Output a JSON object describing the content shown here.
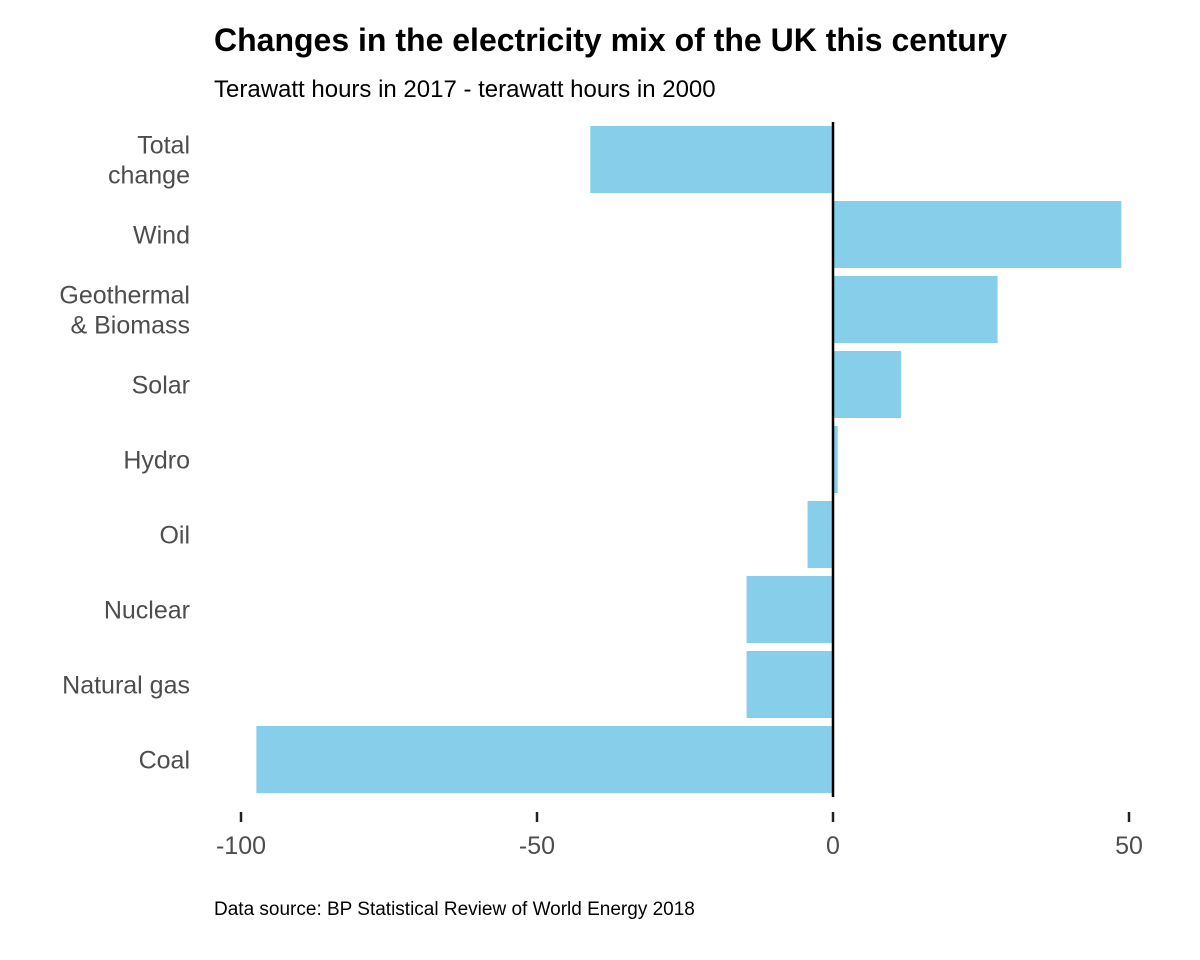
{
  "title": "Changes in the electricity mix of the UK this century",
  "subtitle": "Terawatt hours in 2017 - terawatt hours in 2000",
  "source": "Data source: BP Statistical Review of World Energy 2018",
  "chart_data": {
    "type": "bar",
    "orientation": "horizontal",
    "categories": [
      [
        "Total",
        "change"
      ],
      [
        "Wind"
      ],
      [
        "Geothermal",
        "& Biomass"
      ],
      [
        "Solar"
      ],
      [
        "Hydro"
      ],
      [
        "Oil"
      ],
      [
        "Nuclear"
      ],
      [
        "Natural gas"
      ],
      [
        "Coal"
      ]
    ],
    "values": [
      -41,
      48.7,
      27.8,
      11.5,
      0.8,
      -4.3,
      -14.6,
      -14.6,
      -97.4
    ],
    "xlim": [
      -102,
      52
    ],
    "xticks": [
      -100,
      -50,
      0,
      50
    ],
    "xtick_labels": [
      "-100",
      "-50",
      "0",
      "50"
    ],
    "bar_color": "#87ceeb",
    "zero_line_color": "#000000",
    "grid": false,
    "legend": "none"
  }
}
